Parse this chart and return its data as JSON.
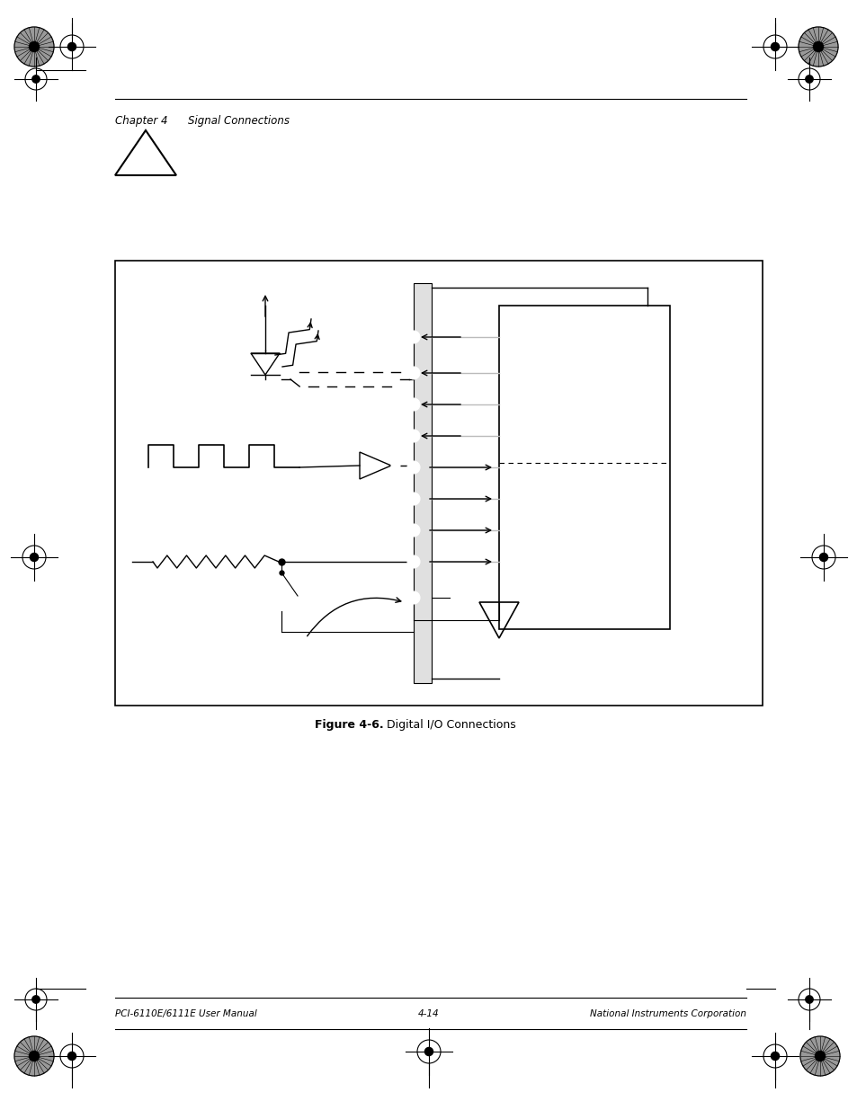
{
  "bg_color": "#ffffff",
  "fig_width": 9.54,
  "fig_height": 12.35,
  "dpi": 100,
  "chapter_text": "Chapter 4      Signal Connections",
  "figure_caption_bold": "Figure 4-6.",
  "figure_caption_normal": "  Digital I/O Connections",
  "footer_left": "PCI-6110E/6111E User Manual",
  "footer_center": "4-14",
  "footer_right": "National Instruments Corporation"
}
